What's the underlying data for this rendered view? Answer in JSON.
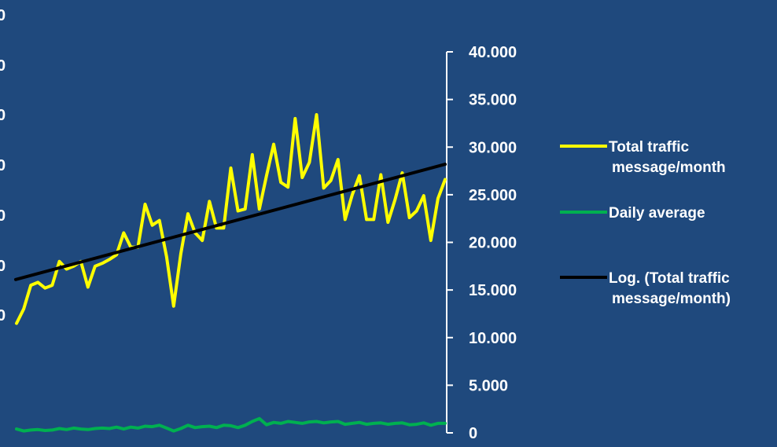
{
  "chart_data": {
    "type": "line",
    "title": "",
    "xlabel": "",
    "right_axis": {
      "ylim": [
        0,
        40000
      ],
      "ticks": [
        0,
        5000,
        10000,
        15000,
        20000,
        25000,
        30000,
        35000,
        40000
      ],
      "tick_labels": [
        "0",
        "5.000",
        "10.000",
        "15.000",
        "20.000",
        "25.000",
        "30.000",
        "35.000",
        "40.000"
      ]
    },
    "left_axis_partial_labels": [
      "0",
      "0",
      "0",
      "0",
      "0",
      "0",
      "0"
    ],
    "grid": false,
    "legend_position": "right",
    "series": [
      {
        "name": "Total traffic message/month",
        "color": "#ffff00",
        "axis": "right",
        "values": [
          11500,
          13000,
          15500,
          15800,
          15200,
          15500,
          18000,
          17200,
          17500,
          18000,
          15300,
          17500,
          17800,
          18200,
          18700,
          21000,
          19500,
          19500,
          24000,
          21800,
          22300,
          18500,
          13300,
          18800,
          23000,
          21000,
          20200,
          24300,
          21500,
          21500,
          27800,
          23300,
          23500,
          29200,
          23500,
          27000,
          30300,
          26300,
          25800,
          33000,
          26800,
          28400,
          33400,
          25700,
          26500,
          28700,
          22400,
          25000,
          27000,
          22400,
          22400,
          27100,
          22100,
          24500,
          27300,
          22600,
          23300,
          24900,
          20200,
          24600,
          26600
        ]
      },
      {
        "name": "Daily average",
        "color": "#00b050",
        "axis": "right",
        "values": [
          400,
          200,
          300,
          350,
          250,
          300,
          450,
          350,
          500,
          400,
          350,
          450,
          500,
          450,
          600,
          400,
          600,
          500,
          700,
          650,
          800,
          500,
          200,
          450,
          800,
          550,
          650,
          700,
          550,
          800,
          750,
          550,
          800,
          1200,
          1500,
          850,
          1100,
          1000,
          1200,
          1100,
          1000,
          1150,
          1200,
          1050,
          1150,
          1200,
          900,
          1000,
          1100,
          900,
          1000,
          1050,
          900,
          1000,
          1050,
          850,
          900,
          1050,
          800,
          1000,
          1000
        ]
      },
      {
        "name": "Log. (Total traffic message/month)",
        "color": "#000000",
        "axis": "right",
        "trendline": true,
        "values": [
          16100,
          28200
        ]
      }
    ]
  }
}
